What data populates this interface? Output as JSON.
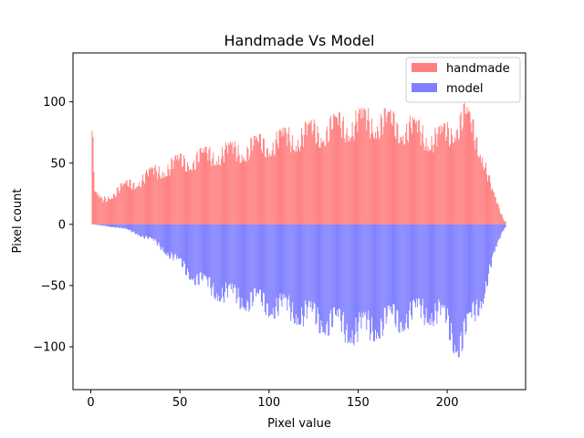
{
  "chart_data": {
    "type": "bar",
    "title": "Handmade Vs Model",
    "xlabel": "Pixel value",
    "ylabel": "Pixel count",
    "xlim": [
      -10,
      244
    ],
    "ylim": [
      -135,
      140
    ],
    "xticks": [
      0,
      50,
      100,
      150,
      200
    ],
    "xtick_labels": [
      "0",
      "50",
      "100",
      "150",
      "200"
    ],
    "yticks": [
      -100,
      -50,
      0,
      50,
      100
    ],
    "ytick_labels": [
      "−100",
      "−50",
      "0",
      "50",
      "100"
    ],
    "grid": false,
    "legend_position": "upper right",
    "series": [
      {
        "name": "handmade",
        "color": "#ff8080",
        "direction": "positive",
        "x": [
          1,
          2,
          6,
          10,
          15,
          20,
          25,
          30,
          35,
          40,
          45,
          50,
          55,
          60,
          65,
          70,
          75,
          80,
          85,
          90,
          95,
          100,
          105,
          110,
          115,
          120,
          125,
          130,
          135,
          140,
          145,
          150,
          155,
          160,
          165,
          170,
          175,
          180,
          185,
          190,
          195,
          200,
          205,
          210,
          215,
          220,
          225,
          230,
          232
        ],
        "values": [
          77,
          28,
          22,
          27,
          32,
          36,
          40,
          44,
          48,
          52,
          55,
          58,
          60,
          62,
          64,
          66,
          67,
          68,
          70,
          72,
          74,
          76,
          78,
          80,
          82,
          84,
          86,
          88,
          90,
          92,
          94,
          95,
          96,
          97,
          95,
          93,
          91,
          88,
          85,
          82,
          80,
          85,
          95,
          100,
          85,
          65,
          30,
          10,
          3
        ]
      },
      {
        "name": "model",
        "color": "#8080ff",
        "direction": "negative",
        "x": [
          1,
          5,
          10,
          15,
          20,
          25,
          30,
          35,
          40,
          45,
          50,
          55,
          60,
          65,
          70,
          75,
          80,
          85,
          90,
          95,
          100,
          105,
          110,
          115,
          120,
          125,
          130,
          135,
          140,
          145,
          150,
          155,
          160,
          165,
          170,
          175,
          180,
          185,
          190,
          195,
          200,
          205,
          210,
          215,
          220,
          225,
          230,
          232
        ],
        "values": [
          0,
          1,
          2,
          3,
          5,
          8,
          12,
          16,
          22,
          30,
          38,
          45,
          52,
          58,
          62,
          65,
          68,
          70,
          72,
          74,
          76,
          78,
          80,
          82,
          85,
          88,
          90,
          93,
          96,
          98,
          100,
          98,
          95,
          92,
          90,
          88,
          85,
          83,
          82,
          85,
          95,
          110,
          105,
          85,
          65,
          35,
          10,
          3
        ]
      }
    ]
  }
}
